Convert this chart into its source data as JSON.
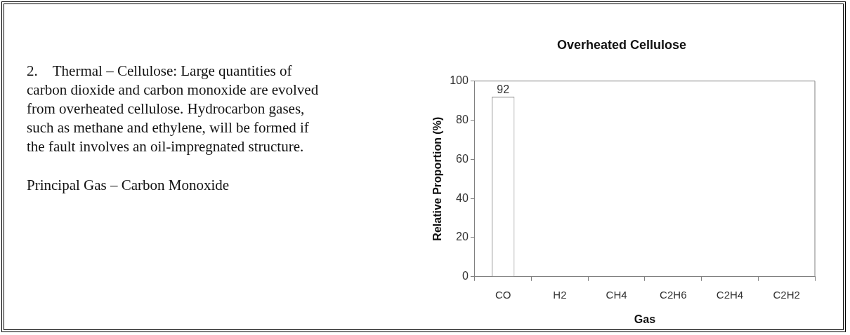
{
  "chart_data": {
    "type": "bar",
    "title": "Overheated Cellulose",
    "xlabel": "Gas",
    "ylabel": "Relative Proportion (%)",
    "categories": [
      "CO",
      "H2",
      "CH4",
      "C2H6",
      "C2H4",
      "C2H2"
    ],
    "values": [
      92,
      0,
      0,
      0,
      0,
      0
    ],
    "value_labels": [
      "92",
      null,
      null,
      null,
      null,
      null
    ],
    "color": "#ffffff",
    "ylim": [
      0,
      100
    ],
    "yticks": [
      0,
      20,
      40,
      60,
      80,
      100
    ],
    "grid": false,
    "legend": false,
    "annotations": [
      "2. Thermal – Cellulose: Large quantities of carbon dioxide and carbon monoxide are evolved from overheated cellulose. Hydrocarbon gases, such as methane and ethylene, will be formed if the fault involves an oil-impregnated structure.",
      "Principal Gas – Carbon Monoxide"
    ]
  }
}
